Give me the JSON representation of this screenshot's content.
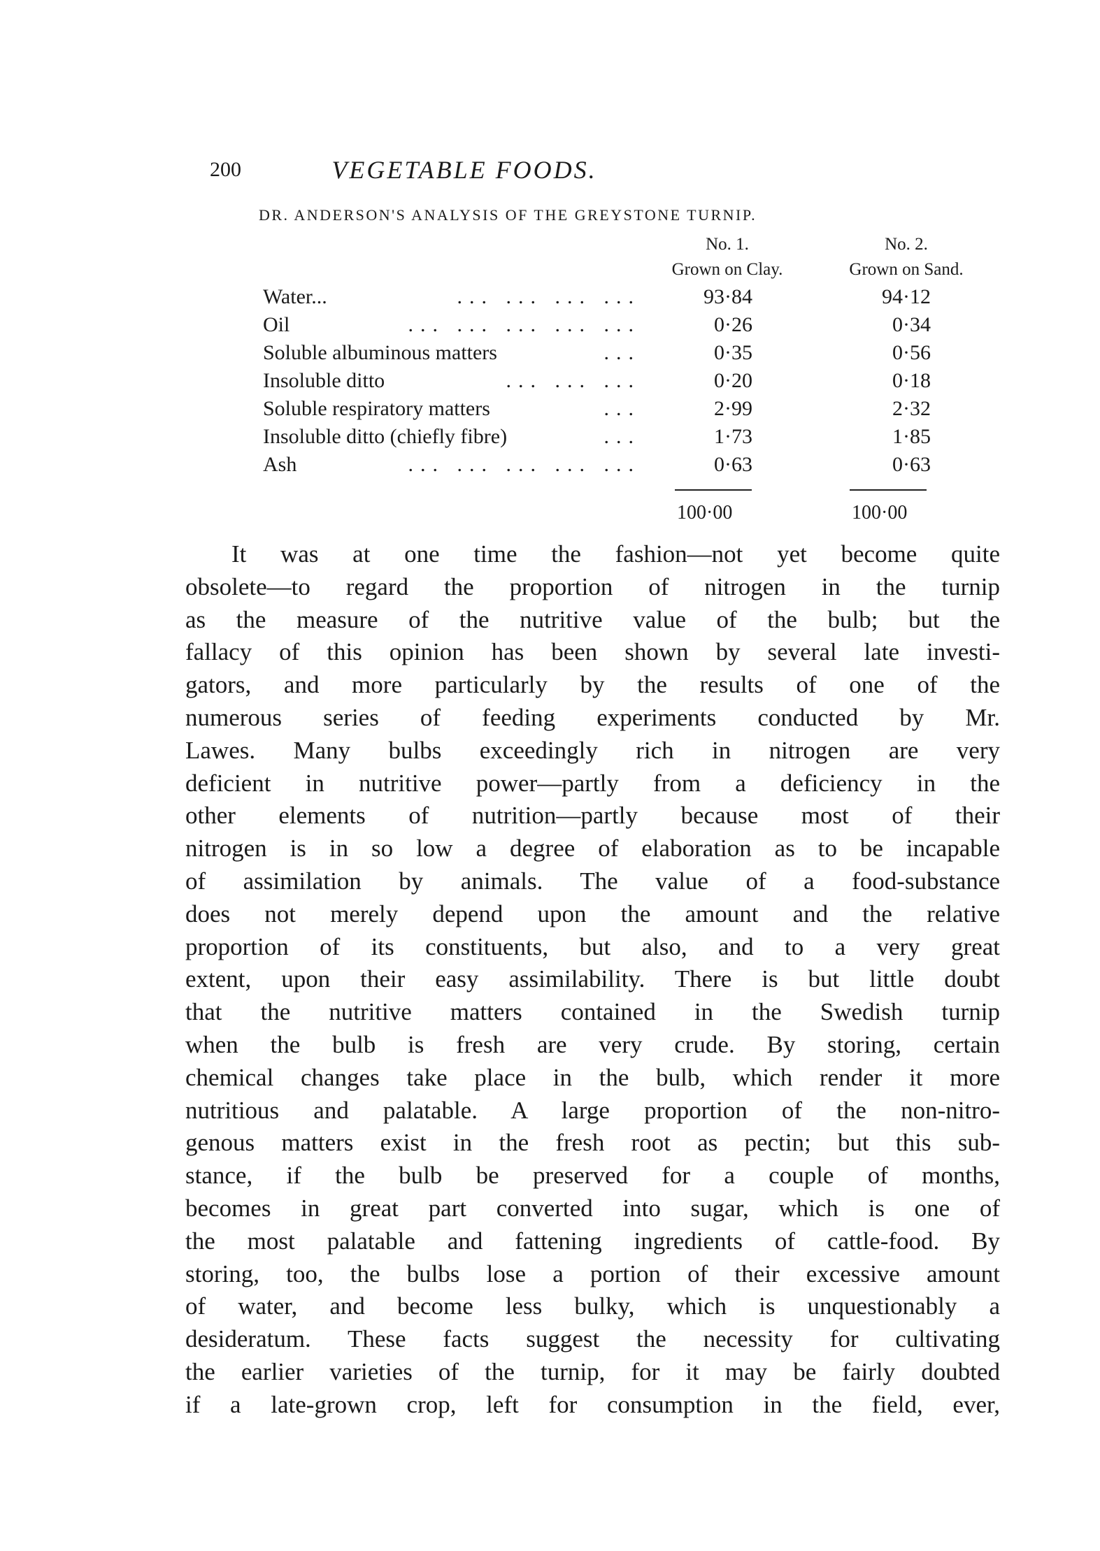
{
  "header": {
    "page_number": "200",
    "running_title": "VEGETABLE FOODS."
  },
  "table": {
    "title": "Dr. Anderson's Analysis of the Greystone Turnip.",
    "columns": [
      {
        "number": "No. 1.",
        "label": "Grown on Clay."
      },
      {
        "number": "No. 2.",
        "label": "Grown on Sand."
      }
    ],
    "rows": [
      {
        "label": "Water...",
        "dots": "... ... ... ...",
        "v1": "93·84",
        "v2": "94·12"
      },
      {
        "label": "Oil",
        "dots": "... ... ... ... ...",
        "v1": "0·26",
        "v2": "0·34"
      },
      {
        "label": "Soluble albuminous matters",
        "dots": "...",
        "v1": "0·35",
        "v2": "0·56"
      },
      {
        "label": "Insoluble ditto",
        "dots": "... ... ...",
        "v1": "0·20",
        "v2": "0·18"
      },
      {
        "label": "Soluble respiratory matters",
        "dots": "...",
        "v1": "2·99",
        "v2": "2·32"
      },
      {
        "label": "Insoluble ditto (chiefly fibre)",
        "dots": "...",
        "v1": "1·73",
        "v2": "1·85"
      },
      {
        "label": "Ash",
        "dots": "... ... ... ... ...",
        "v1": "0·63",
        "v2": "0·63"
      }
    ],
    "totals": [
      "100·00",
      "100·00"
    ]
  },
  "body_lines": [
    "It was at one time the fashion—not yet become quite",
    "obsolete—to regard the proportion of nitrogen in the turnip",
    "as the measure of the nutritive value of the bulb; but the",
    "fallacy of this opinion has been shown by several late investi-",
    "gators, and more particularly by the results of one of the",
    "numerous series of feeding experiments conducted by Mr.",
    "Lawes. Many bulbs exceedingly rich in nitrogen are very",
    "deficient in nutritive power—partly from a deficiency in the",
    "other elements of nutrition—partly because most of their",
    "nitrogen is in so low a degree of elaboration as to be incapable",
    "of assimilation by animals. The value of a food-substance",
    "does not merely depend upon the amount and the relative",
    "proportion of its constituents, but also, and to a very great",
    "extent, upon their easy assimilability. There is but little doubt",
    "that the nutritive matters contained in the Swedish turnip",
    "when the bulb is fresh are very crude. By storing, certain",
    "chemical changes take place in the bulb, which render it more",
    "nutritious and palatable. A large proportion of the non-nitro-",
    "genous matters exist in the fresh root as pectin; but this sub-",
    "stance, if the bulb be preserved for a couple of months,",
    "becomes in great part converted into sugar, which is one of",
    "the most palatable and fattening ingredients of cattle-food. By",
    "storing, too, the bulbs lose a portion of their excessive amount",
    "of water, and become less bulky, which is unquestionably a",
    "desideratum. These facts suggest the necessity for cultivating",
    "the earlier varieties of the turnip, for it may be fairly doubted",
    "if a late-grown crop, left for consumption in the field, ever,"
  ]
}
